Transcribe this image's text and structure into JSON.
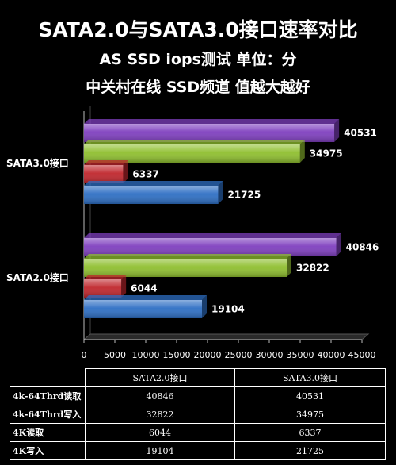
{
  "titles": {
    "line1": "SATA2.0与SATA3.0接口速率对比",
    "line2": "AS SSD iops测试  单位：分",
    "line3": "中关村在线 SSD频道  值越大越好"
  },
  "colors": {
    "4k-64thrd-read": "#7f3fbf",
    "4k-64thrd-write": "#8fbf2f",
    "4k-read": "#c0272d",
    "4k-write": "#2e6fc4"
  },
  "chart_data": {
    "type": "bar",
    "orientation": "horizontal",
    "categories": [
      "SATA3.0接口",
      "SATA2.0接口"
    ],
    "series": [
      {
        "name": "4k-64Thrd读取",
        "values": [
          40531,
          40846
        ]
      },
      {
        "name": "4k-64Thrd写入",
        "values": [
          34975,
          32822
        ]
      },
      {
        "name": "4K读取",
        "values": [
          6337,
          6044
        ]
      },
      {
        "name": "4K写入",
        "values": [
          21725,
          19104
        ]
      }
    ],
    "xlim": [
      0,
      45000
    ],
    "xticks": [
      "0",
      "5000",
      "10000",
      "15000",
      "20000",
      "25000",
      "30000",
      "35000",
      "40000",
      "45000"
    ],
    "grid": false,
    "legend": "none"
  },
  "table": {
    "headers": [
      "SATA2.0接口",
      "SATA3.0接口"
    ],
    "rows": [
      {
        "label": "4k-64Thrd读取",
        "values": [
          "40846",
          "40531"
        ]
      },
      {
        "label": "4k-64Thrd写入",
        "values": [
          "32822",
          "34975"
        ]
      },
      {
        "label": "4K读取",
        "values": [
          "6044",
          "6337"
        ]
      },
      {
        "label": "4K写入",
        "values": [
          "19104",
          "21725"
        ]
      }
    ]
  }
}
